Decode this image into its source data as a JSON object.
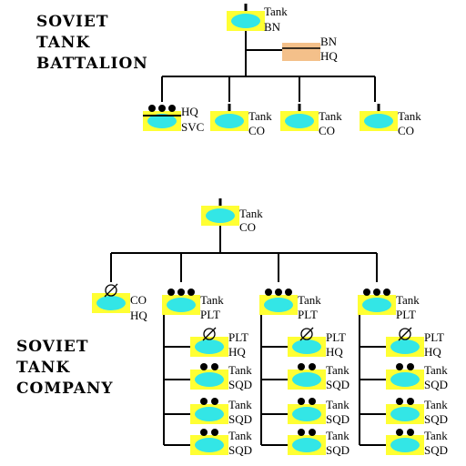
{
  "colors": {
    "unit_fill": "#ffff33",
    "ellipse_fill": "#33e6e6",
    "hq_fill": "#f4c08a",
    "line": "#000000",
    "background": "#ffffff"
  },
  "battalion": {
    "title_lines": [
      "SOVIET",
      "TANK",
      "BATTALION"
    ],
    "top": {
      "l1": "Tank",
      "l2": "BN"
    },
    "staff": {
      "l1": "BN",
      "l2": "HQ"
    },
    "subunits": [
      {
        "l1": "HQ",
        "l2": "SVC"
      },
      {
        "l1": "Tank",
        "l2": "CO"
      },
      {
        "l1": "Tank",
        "l2": "CO"
      },
      {
        "l1": "Tank",
        "l2": "CO"
      }
    ]
  },
  "company": {
    "title_lines": [
      "SOVIET",
      "TANK",
      "COMPANY"
    ],
    "top": {
      "l1": "Tank",
      "l2": "CO"
    },
    "hq": {
      "l1": "CO",
      "l2": "HQ"
    },
    "platoon": {
      "l1": "Tank",
      "l2": "PLT"
    },
    "platoon_hq": {
      "l1": "PLT",
      "l2": "HQ"
    },
    "squad": {
      "l1": "Tank",
      "l2": "SQD"
    }
  }
}
